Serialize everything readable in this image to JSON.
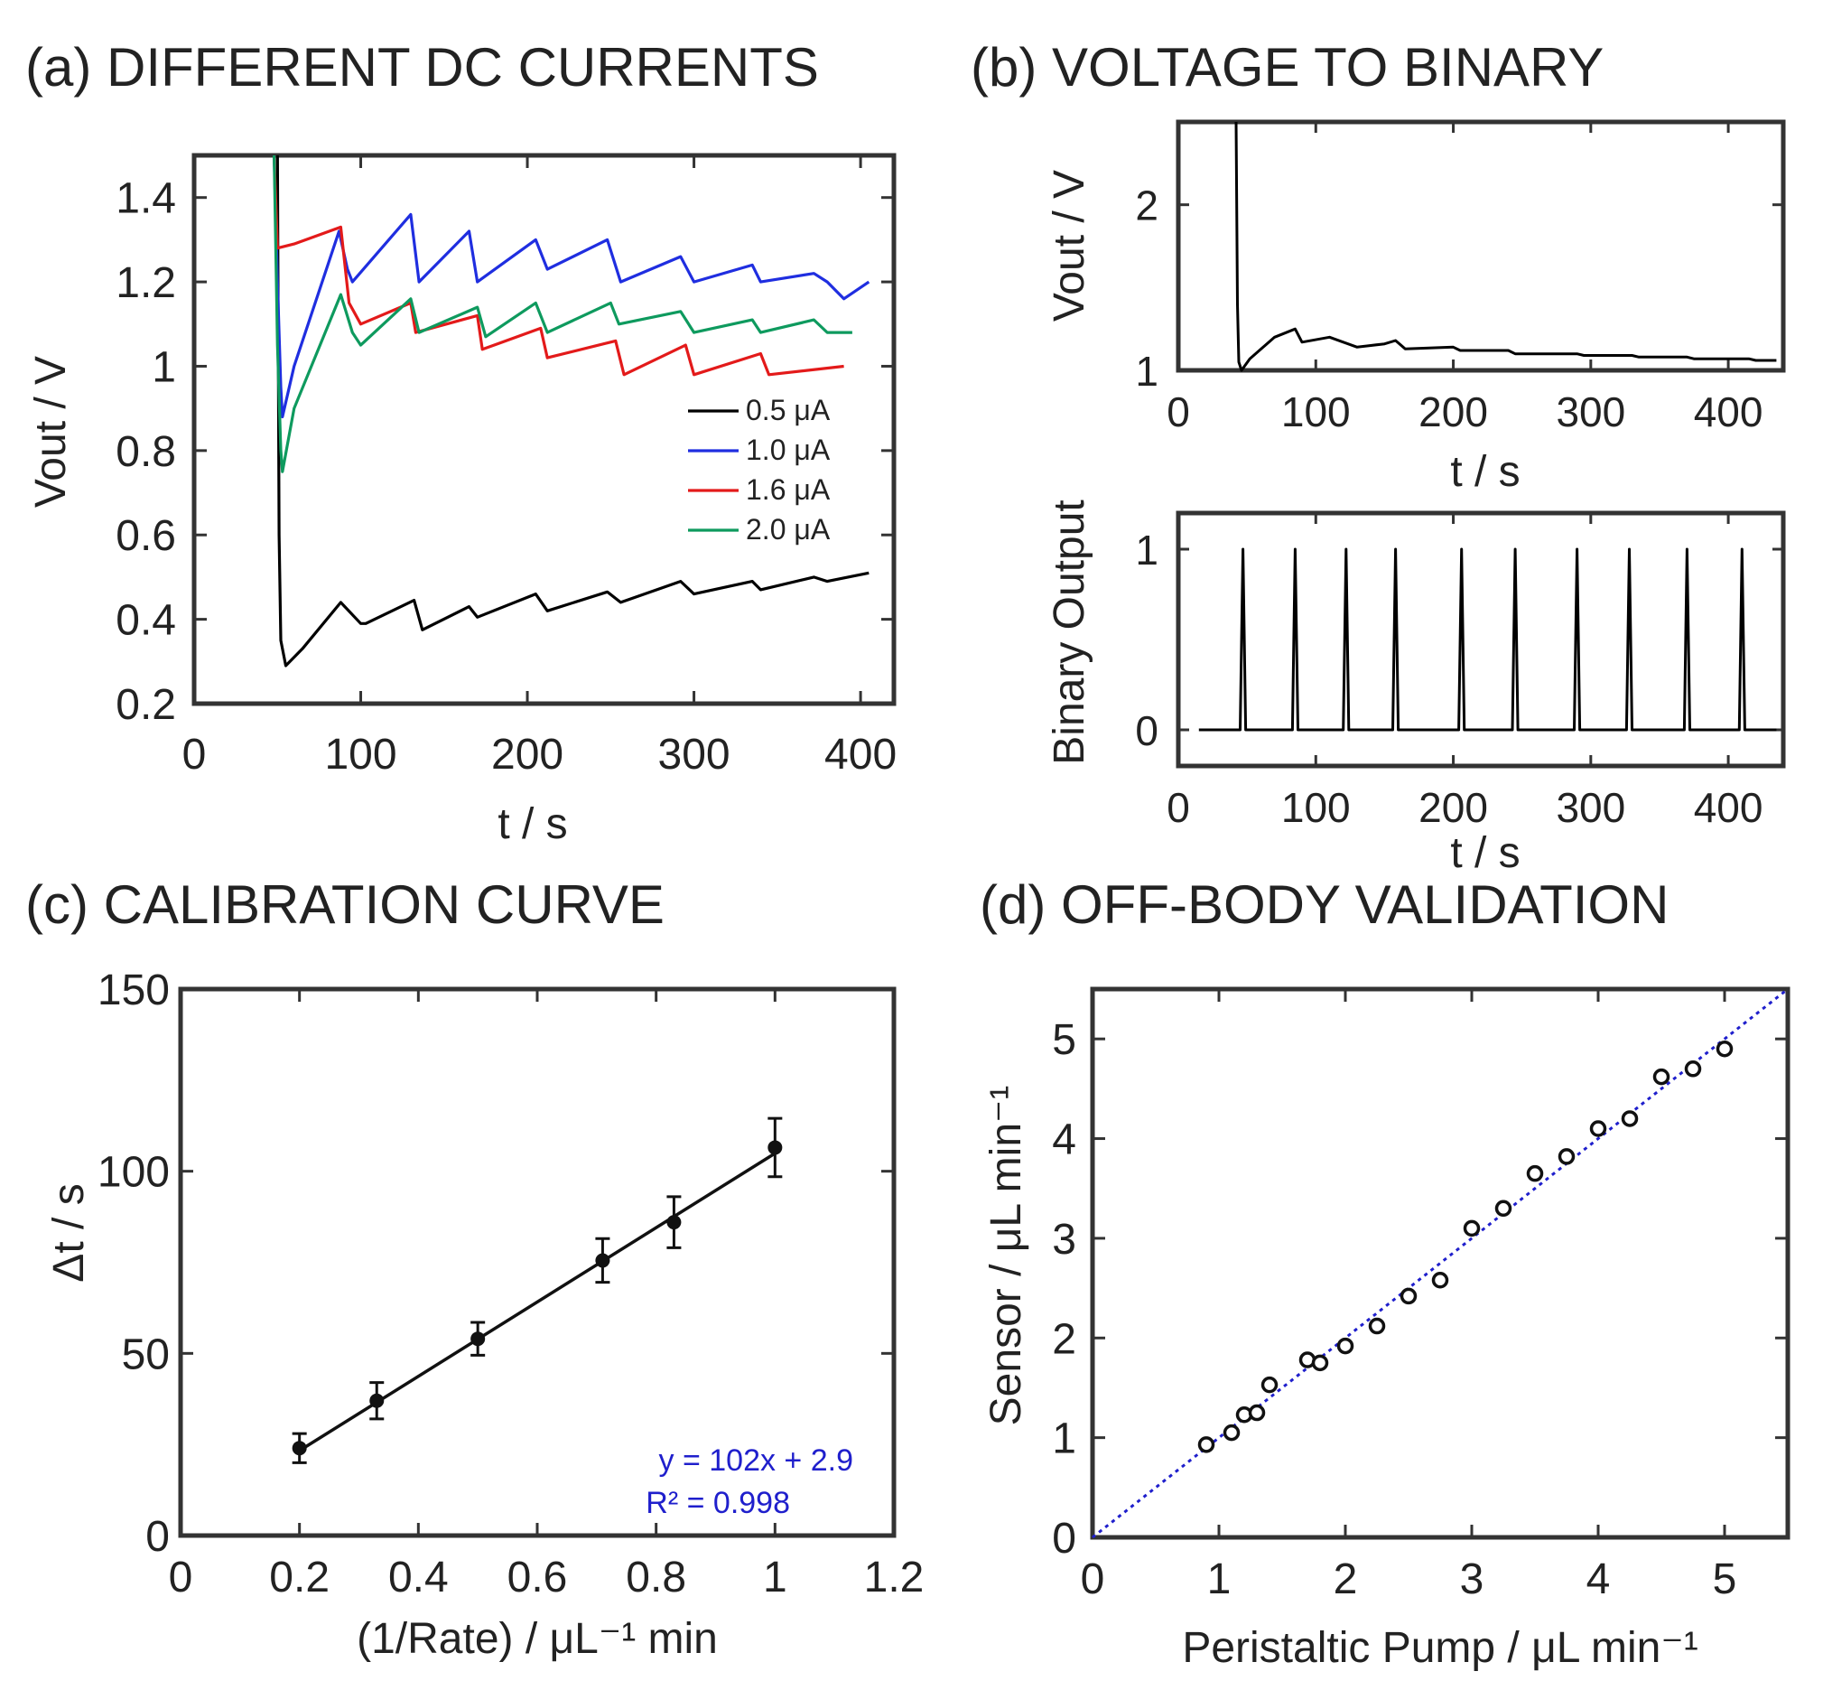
{
  "chart_data": [
    {
      "id": "a",
      "type": "line",
      "title": "(a) DIFFERENT DC CURRENTS",
      "xlabel": "t / s",
      "ylabel": "Vout / V",
      "xlim": [
        0,
        420
      ],
      "ylim": [
        0.2,
        1.5
      ],
      "xticks": [
        0,
        100,
        200,
        300,
        400
      ],
      "xtick_labels": [
        "0",
        "100",
        "200",
        "300",
        "400"
      ],
      "yticks": [
        0.2,
        0.4,
        0.6,
        0.8,
        1.0,
        1.2,
        1.4
      ],
      "ytick_labels": [
        "0.2",
        "0.4",
        "0.6",
        "0.8",
        "1",
        "1.2",
        "1.4"
      ],
      "legend_position": "right",
      "series": [
        {
          "name": "0.5  μA",
          "color": "#000000",
          "points": [
            [
              50,
              1.5
            ],
            [
              51,
              0.6
            ],
            [
              52,
              0.35
            ],
            [
              55,
              0.29
            ],
            [
              65,
              0.33
            ],
            [
              88,
              0.44
            ],
            [
              100,
              0.39
            ],
            [
              103,
              0.39
            ],
            [
              132,
              0.445
            ],
            [
              137,
              0.375
            ],
            [
              165,
              0.43
            ],
            [
              170,
              0.405
            ],
            [
              205,
              0.46
            ],
            [
              212,
              0.42
            ],
            [
              248,
              0.465
            ],
            [
              256,
              0.44
            ],
            [
              292,
              0.49
            ],
            [
              300,
              0.46
            ],
            [
              335,
              0.49
            ],
            [
              340,
              0.47
            ],
            [
              372,
              0.5
            ],
            [
              380,
              0.49
            ],
            [
              405,
              0.51
            ]
          ]
        },
        {
          "name": "1.0  μA",
          "color": "#1f2ee0",
          "points": [
            [
              48,
              1.5
            ],
            [
              50,
              1.2
            ],
            [
              52,
              0.95
            ],
            [
              53,
              0.88
            ],
            [
              60,
              1.0
            ],
            [
              87,
              1.32
            ],
            [
              92,
              1.23
            ],
            [
              95,
              1.2
            ],
            [
              130,
              1.36
            ],
            [
              135,
              1.2
            ],
            [
              165,
              1.32
            ],
            [
              170,
              1.2
            ],
            [
              205,
              1.3
            ],
            [
              212,
              1.23
            ],
            [
              248,
              1.3
            ],
            [
              256,
              1.2
            ],
            [
              292,
              1.26
            ],
            [
              300,
              1.2
            ],
            [
              335,
              1.24
            ],
            [
              340,
              1.2
            ],
            [
              372,
              1.22
            ],
            [
              380,
              1.2
            ],
            [
              390,
              1.16
            ],
            [
              405,
              1.2
            ]
          ]
        },
        {
          "name": "1.6  μA",
          "color": "#e31a1a",
          "points": [
            [
              48,
              1.5
            ],
            [
              50,
              1.28
            ],
            [
              60,
              1.29
            ],
            [
              88,
              1.33
            ],
            [
              93,
              1.15
            ],
            [
              100,
              1.1
            ],
            [
              130,
              1.15
            ],
            [
              133,
              1.08
            ],
            [
              170,
              1.12
            ],
            [
              173,
              1.04
            ],
            [
              208,
              1.09
            ],
            [
              212,
              1.02
            ],
            [
              253,
              1.06
            ],
            [
              258,
              0.98
            ],
            [
              295,
              1.05
            ],
            [
              300,
              0.98
            ],
            [
              340,
              1.03
            ],
            [
              345,
              0.98
            ],
            [
              390,
              1.0
            ]
          ]
        },
        {
          "name": "2.0  μA",
          "color": "#0e9a5e",
          "points": [
            [
              48,
              1.5
            ],
            [
              50,
              1.05
            ],
            [
              52,
              0.8
            ],
            [
              53,
              0.75
            ],
            [
              60,
              0.9
            ],
            [
              88,
              1.17
            ],
            [
              95,
              1.08
            ],
            [
              100,
              1.05
            ],
            [
              130,
              1.16
            ],
            [
              135,
              1.08
            ],
            [
              170,
              1.14
            ],
            [
              175,
              1.07
            ],
            [
              205,
              1.15
            ],
            [
              212,
              1.08
            ],
            [
              250,
              1.15
            ],
            [
              255,
              1.1
            ],
            [
              292,
              1.13
            ],
            [
              300,
              1.08
            ],
            [
              335,
              1.11
            ],
            [
              340,
              1.08
            ],
            [
              372,
              1.11
            ],
            [
              380,
              1.08
            ],
            [
              395,
              1.08
            ]
          ]
        }
      ]
    },
    {
      "id": "b1",
      "type": "line",
      "title": "(b) VOLTAGE TO BINARY",
      "xlabel": "t / s",
      "ylabel": "Vout / V",
      "xlim": [
        0,
        440
      ],
      "ylim": [
        1.0,
        2.5
      ],
      "xticks": [
        0,
        100,
        200,
        300,
        400
      ],
      "xtick_labels": [
        "0",
        "100",
        "200",
        "300",
        "400"
      ],
      "yticks": [
        1,
        2
      ],
      "ytick_labels": [
        "1",
        "2"
      ],
      "series": [
        {
          "name": "Vout",
          "color": "#000000",
          "points": [
            [
              42,
              2.5
            ],
            [
              43,
              1.4
            ],
            [
              44,
              1.05
            ],
            [
              46,
              1.0
            ],
            [
              52,
              1.07
            ],
            [
              70,
              1.2
            ],
            [
              85,
              1.25
            ],
            [
              90,
              1.17
            ],
            [
              110,
              1.2
            ],
            [
              120,
              1.17
            ],
            [
              130,
              1.14
            ],
            [
              150,
              1.16
            ],
            [
              158,
              1.18
            ],
            [
              165,
              1.13
            ],
            [
              200,
              1.14
            ],
            [
              205,
              1.12
            ],
            [
              240,
              1.12
            ],
            [
              245,
              1.1
            ],
            [
              290,
              1.1
            ],
            [
              295,
              1.09
            ],
            [
              330,
              1.09
            ],
            [
              335,
              1.08
            ],
            [
              370,
              1.08
            ],
            [
              375,
              1.07
            ],
            [
              415,
              1.07
            ],
            [
              420,
              1.06
            ],
            [
              435,
              1.06
            ]
          ]
        }
      ]
    },
    {
      "id": "b2",
      "type": "line",
      "title": "",
      "xlabel": "t / s",
      "ylabel": "Binary Output",
      "xlim": [
        0,
        440
      ],
      "ylim": [
        -0.2,
        1.2
      ],
      "xticks": [
        0,
        100,
        200,
        300,
        400
      ],
      "xtick_labels": [
        "0",
        "100",
        "200",
        "300",
        "400"
      ],
      "yticks": [
        0,
        1
      ],
      "ytick_labels": [
        "0",
        "1"
      ],
      "pulse_times": [
        47,
        85,
        122,
        158,
        206,
        245,
        290,
        328,
        370,
        410
      ],
      "series": [
        {
          "name": "Binary",
          "color": "#000000"
        }
      ]
    },
    {
      "id": "c",
      "type": "scatter",
      "title": "(c) CALIBRATION CURVE",
      "xlabel": "(1/Rate) / μL⁻¹  min",
      "ylabel": "Δt / s",
      "xlim": [
        0,
        1.2
      ],
      "ylim": [
        0,
        150
      ],
      "xticks": [
        0,
        0.2,
        0.4,
        0.6,
        0.8,
        1.0,
        1.2
      ],
      "xtick_labels": [
        "0",
        "0.2",
        "0.4",
        "0.6",
        "0.8",
        "1",
        "1.2"
      ],
      "yticks": [
        0,
        50,
        100,
        150
      ],
      "ytick_labels": [
        "0",
        "50",
        "100",
        "150"
      ],
      "points": [
        {
          "x": 0.2,
          "y": 24,
          "err": 4
        },
        {
          "x": 0.33,
          "y": 37,
          "err": 5
        },
        {
          "x": 0.5,
          "y": 54,
          "err": 4.5
        },
        {
          "x": 0.71,
          "y": 75.5,
          "err": 6
        },
        {
          "x": 0.83,
          "y": 86,
          "err": 7
        },
        {
          "x": 1.0,
          "y": 106.5,
          "err": 8
        }
      ],
      "fit": {
        "x0": 0.2,
        "x1": 1.0,
        "slope": 102,
        "intercept": 2.9
      },
      "equation": "y = 102x + 2.9",
      "r2": "R² = 0.998"
    },
    {
      "id": "d",
      "type": "scatter",
      "title": "(d) OFF-BODY VALIDATION",
      "xlabel": "Peristaltic Pump / μL min⁻¹",
      "ylabel": "Sensor / μL min⁻¹",
      "xlim": [
        0,
        5.5
      ],
      "ylim": [
        0,
        5.5
      ],
      "xticks": [
        0,
        1,
        2,
        3,
        4,
        5
      ],
      "xtick_labels": [
        "0",
        "1",
        "2",
        "3",
        "4",
        "5"
      ],
      "yticks": [
        0,
        1,
        2,
        3,
        4,
        5
      ],
      "ytick_labels": [
        "0",
        "1",
        "2",
        "3",
        "4",
        "5"
      ],
      "points": [
        [
          0.9,
          0.93
        ],
        [
          1.1,
          1.05
        ],
        [
          1.2,
          1.23
        ],
        [
          1.3,
          1.25
        ],
        [
          1.4,
          1.53
        ],
        [
          1.7,
          1.78
        ],
        [
          1.8,
          1.75
        ],
        [
          2.0,
          1.92
        ],
        [
          2.25,
          2.12
        ],
        [
          2.5,
          2.42
        ],
        [
          2.75,
          2.58
        ],
        [
          3.0,
          3.1
        ],
        [
          3.25,
          3.3
        ],
        [
          3.5,
          3.65
        ],
        [
          3.75,
          3.82
        ],
        [
          4.0,
          4.1
        ],
        [
          4.25,
          4.2
        ],
        [
          4.5,
          4.62
        ],
        [
          4.75,
          4.7
        ],
        [
          5.0,
          4.9
        ]
      ],
      "reference_line": {
        "from": [
          0,
          0
        ],
        "to": [
          5.5,
          5.5
        ],
        "color": "#1f1fcc",
        "style": "dotted"
      }
    }
  ]
}
